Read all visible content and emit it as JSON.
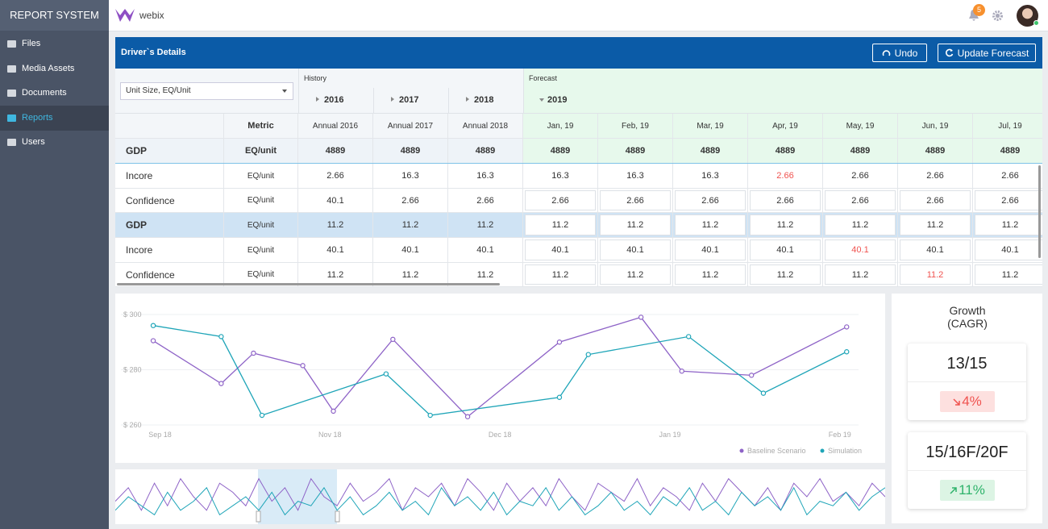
{
  "sidebar": {
    "title": "REPORT SYSTEM",
    "items": [
      "Files",
      "Media Assets",
      "Documents",
      "Reports",
      "Users"
    ],
    "active": 3
  },
  "header": {
    "logo": "webix",
    "notifications": 5
  },
  "panel": {
    "title": "Driver`s Details",
    "buttons": [
      "Undo",
      "Update Forecast"
    ],
    "select": "Unit Size, EQ/Unit",
    "groups": [
      "History",
      "Forecast"
    ],
    "years": [
      "2016",
      "2017",
      "2018",
      "2019"
    ],
    "metric_header": "Metric",
    "columns": [
      "Annual 2016",
      "Annual 2017",
      "Annual 2018",
      "Jan, 19",
      "Feb, 19",
      "Mar, 19",
      "Apr, 19",
      "May, 19",
      "Jun, 19",
      "Jul, 19"
    ],
    "summary": {
      "name": "GDP",
      "metric": "EQ/unit",
      "cells": [
        4889,
        4889,
        4889,
        4889,
        4889,
        4889,
        4889,
        4889,
        4889,
        4889
      ]
    },
    "alert_color": "#f0524f",
    "rows": [
      {
        "name": "Incore",
        "metric": "EQ/unit",
        "cells": [
          2.66,
          16.3,
          16.3,
          16.3,
          16.3,
          16.3,
          2.66,
          2.66,
          2.66,
          2.66
        ],
        "alerts": [
          6
        ],
        "editable": false,
        "selected": false
      },
      {
        "name": "Confidence",
        "metric": "EQ/unit",
        "cells": [
          40.1,
          2.66,
          2.66,
          2.66,
          2.66,
          2.66,
          2.66,
          2.66,
          2.66,
          2.66
        ],
        "alerts": [],
        "editable": true,
        "selected": false
      },
      {
        "name": "GDP",
        "metric": "EQ/unit",
        "cells": [
          11.2,
          11.2,
          11.2,
          11.2,
          11.2,
          11.2,
          11.2,
          11.2,
          11.2,
          11.2
        ],
        "alerts": [],
        "editable": true,
        "selected": true
      },
      {
        "name": "Incore",
        "metric": "EQ/unit",
        "cells": [
          40.1,
          40.1,
          40.1,
          40.1,
          40.1,
          40.1,
          40.1,
          40.1,
          40.1,
          40.1
        ],
        "alerts": [
          7
        ],
        "editable": true,
        "selected": false
      },
      {
        "name": "Confidence",
        "metric": "EQ/unit",
        "cells": [
          11.2,
          11.2,
          11.2,
          11.2,
          11.2,
          11.2,
          11.2,
          11.2,
          11.2,
          11.2
        ],
        "alerts": [
          8
        ],
        "editable": true,
        "selected": false
      }
    ]
  },
  "chart_data": {
    "type": "line",
    "xlim": [
      -0.23,
      4.11
    ],
    "xticks": [
      {
        "value": 0,
        "label": "Sep 18"
      },
      {
        "value": 1,
        "label": "Nov 18"
      },
      {
        "value": 2,
        "label": "Dec 18"
      },
      {
        "value": 3,
        "label": "Jan 19"
      },
      {
        "value": 4,
        "label": "Feb 19"
      }
    ],
    "ylim": [
      260,
      300
    ],
    "yticks": [
      {
        "value": 260,
        "label": "$ 260"
      },
      {
        "value": 280,
        "label": "$ 280"
      },
      {
        "value": 300,
        "label": "$ 300"
      }
    ],
    "grid": true,
    "series": [
      {
        "name": "Baseline Scenario",
        "color": "#8e63c7",
        "x": [
          -0.04,
          0.36,
          0.55,
          0.84,
          1.02,
          1.37,
          1.81,
          2.35,
          2.83,
          3.07,
          3.48,
          4.04
        ],
        "values": [
          290.5,
          275,
          286,
          281.5,
          265,
          291,
          263,
          290,
          299,
          279.5,
          278,
          295.5
        ]
      },
      {
        "name": "Simulation",
        "color": "#1fa5b8",
        "x": [
          -0.04,
          0.36,
          0.6,
          1.33,
          1.59,
          2.35,
          2.52,
          3.11,
          3.55,
          4.04
        ],
        "values": [
          296,
          292,
          263.5,
          278.5,
          263.5,
          270,
          285.5,
          292,
          271.5,
          286.5
        ]
      }
    ]
  },
  "range_chart": {
    "type": "line",
    "ylim": [
      0,
      10
    ],
    "series": [
      {
        "color": "#8e63c7",
        "values": [
          4,
          7,
          2,
          8,
          3,
          9,
          5,
          2,
          8,
          6,
          3,
          9,
          4,
          7,
          2,
          9,
          5,
          3,
          8,
          4,
          6,
          9,
          2,
          7,
          5,
          8,
          3,
          9,
          6,
          2,
          8,
          4,
          7,
          3,
          9,
          5,
          2,
          8,
          6,
          4,
          9,
          3,
          7,
          5,
          2,
          8,
          4,
          9,
          6,
          3,
          7,
          2,
          8,
          5,
          9,
          4,
          6,
          3,
          8,
          5
        ]
      },
      {
        "color": "#1fa5b8",
        "values": [
          2,
          5,
          3,
          1,
          6,
          2,
          4,
          7,
          1,
          3,
          5,
          2,
          6,
          1,
          4,
          3,
          7,
          2,
          5,
          1,
          3,
          6,
          2,
          4,
          1,
          7,
          3,
          5,
          2,
          6,
          1,
          4,
          3,
          7,
          2,
          5,
          1,
          3,
          6,
          2,
          4,
          1,
          5,
          3,
          7,
          2,
          4,
          1,
          6,
          3,
          5,
          2,
          7,
          1,
          4,
          3,
          6,
          2,
          5,
          7
        ]
      }
    ]
  },
  "growth": {
    "title": "Growth (CAGR)",
    "cards": [
      {
        "value": "13/15",
        "change": "4%",
        "direction": "down"
      },
      {
        "value": "15/16F/20F",
        "change": "11%",
        "direction": "up"
      }
    ]
  }
}
